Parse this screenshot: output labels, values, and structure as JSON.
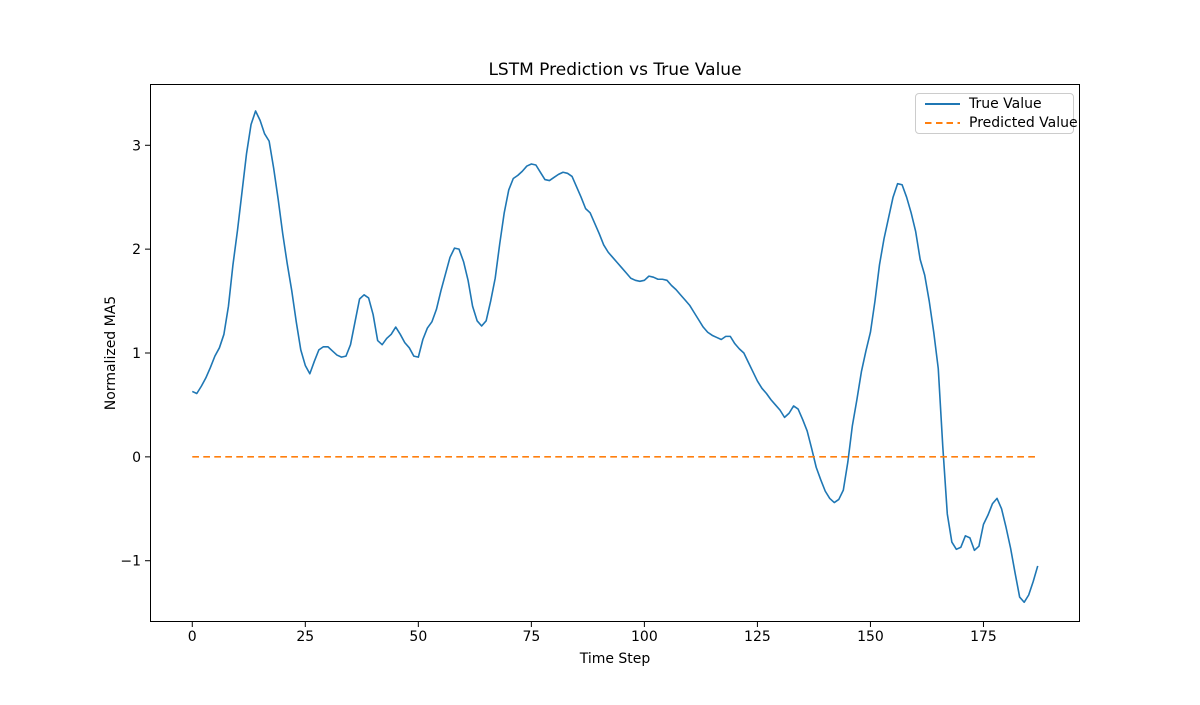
{
  "figure": {
    "background": "#ffffff",
    "axes_edge_color": "#000000"
  },
  "chart_data": {
    "type": "line",
    "title": "LSTM Prediction vs True Value",
    "xlabel": "Time Step",
    "ylabel": "Normalized MA5",
    "xlim": [
      -9.35,
      196.35
    ],
    "ylim": [
      -1.59,
      3.59
    ],
    "x_tick_values": [
      0,
      25,
      50,
      75,
      100,
      125,
      150,
      175
    ],
    "x_tick_labels": [
      "0",
      "25",
      "50",
      "75",
      "100",
      "125",
      "150",
      "175"
    ],
    "y_tick_values": [
      -1,
      0,
      1,
      2,
      3
    ],
    "y_tick_labels": [
      "−1",
      "0",
      "1",
      "2",
      "3"
    ],
    "grid": false,
    "legend_position": "upper right",
    "series": [
      {
        "name": "True Value",
        "color": "#1f77b4",
        "line_style": "solid",
        "line_width": 1.6,
        "x_start": 0,
        "x_step": 1,
        "values": [
          0.63,
          0.61,
          0.68,
          0.76,
          0.86,
          0.97,
          1.05,
          1.18,
          1.45,
          1.85,
          2.18,
          2.55,
          2.92,
          3.2,
          3.33,
          3.24,
          3.11,
          3.04,
          2.78,
          2.48,
          2.15,
          1.86,
          1.6,
          1.3,
          1.03,
          0.88,
          0.8,
          0.92,
          1.03,
          1.06,
          1.06,
          1.02,
          0.98,
          0.96,
          0.97,
          1.08,
          1.3,
          1.52,
          1.56,
          1.53,
          1.37,
          1.12,
          1.08,
          1.14,
          1.18,
          1.25,
          1.18,
          1.1,
          1.05,
          0.97,
          0.96,
          1.13,
          1.24,
          1.3,
          1.42,
          1.6,
          1.76,
          1.92,
          2.01,
          2.0,
          1.88,
          1.7,
          1.45,
          1.31,
          1.26,
          1.31,
          1.5,
          1.72,
          2.05,
          2.35,
          2.57,
          2.68,
          2.71,
          2.75,
          2.8,
          2.82,
          2.81,
          2.74,
          2.67,
          2.66,
          2.69,
          2.72,
          2.74,
          2.73,
          2.7,
          2.6,
          2.5,
          2.39,
          2.35,
          2.25,
          2.15,
          2.04,
          1.97,
          1.92,
          1.87,
          1.82,
          1.77,
          1.72,
          1.7,
          1.69,
          1.7,
          1.74,
          1.73,
          1.71,
          1.71,
          1.7,
          1.65,
          1.61,
          1.56,
          1.51,
          1.46,
          1.39,
          1.32,
          1.25,
          1.2,
          1.17,
          1.15,
          1.13,
          1.16,
          1.16,
          1.09,
          1.04,
          1.0,
          0.91,
          0.82,
          0.73,
          0.66,
          0.61,
          0.55,
          0.5,
          0.45,
          0.38,
          0.42,
          0.49,
          0.46,
          0.36,
          0.25,
          0.08,
          -0.1,
          -0.22,
          -0.33,
          -0.4,
          -0.44,
          -0.41,
          -0.32,
          -0.05,
          0.3,
          0.55,
          0.82,
          1.02,
          1.2,
          1.5,
          1.85,
          2.1,
          2.3,
          2.5,
          2.63,
          2.62,
          2.5,
          2.35,
          2.17,
          1.9,
          1.75,
          1.5,
          1.2,
          0.85,
          0.1,
          -0.55,
          -0.82,
          -0.89,
          -0.87,
          -0.76,
          -0.78,
          -0.9,
          -0.86,
          -0.65,
          -0.56,
          -0.45,
          -0.4,
          -0.5,
          -0.68,
          -0.88,
          -1.12,
          -1.35,
          -1.4,
          -1.33,
          -1.2,
          -1.05
        ]
      },
      {
        "name": "Predicted Value",
        "color": "#ff7f0e",
        "line_style": "dashed",
        "line_width": 1.6,
        "x_start": 0,
        "x_end": 187,
        "constant_value": 0.0
      }
    ]
  }
}
